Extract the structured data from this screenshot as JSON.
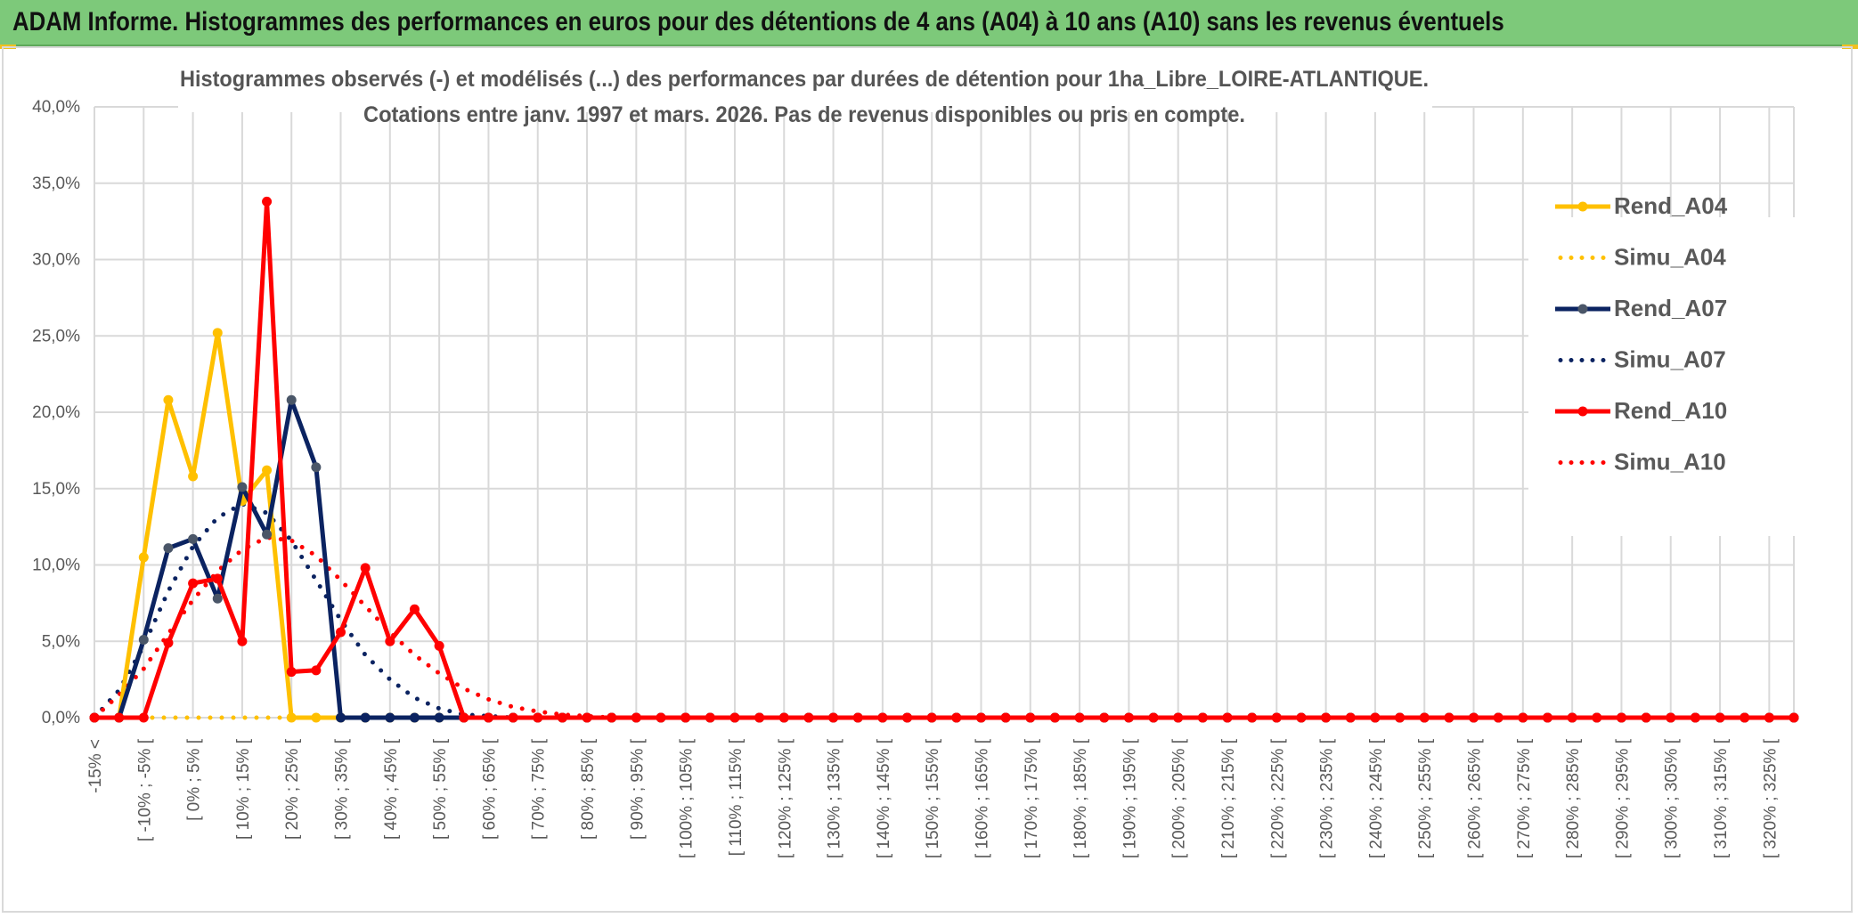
{
  "banner": {
    "title": "ADAM Informe. Histogrammes des performances en euros pour des détentions de 4 ans (A04) à 10 ans (A10) sans les revenus éventuels"
  },
  "chart_data": {
    "type": "line",
    "title": "Histogrammes observés (-) et modélisés (...) des performances par durées de détention pour 1ha_Libre_LOIRE-ATLANTIQUE.",
    "subtitle": "Cotations entre janv. 1997 et mars. 2026. Pas de revenus disponibles ou pris en compte.",
    "xlabel": "",
    "ylabel": "",
    "ylim": [
      0,
      40
    ],
    "yticks": [
      "0,0%",
      "5,0%",
      "10,0%",
      "15,0%",
      "20,0%",
      "25,0%",
      "30,0%",
      "35,0%",
      "40,0%"
    ],
    "grid": true,
    "legend_position": "right",
    "x_tick_labels": [
      "-15% <",
      "[ -10% ; -5% [",
      "[ 0% ; 5% [",
      "[ 10% ; 15% [",
      "[ 20% ; 25% [",
      "[ 30% ; 35% [",
      "[ 40% ; 45% [",
      "[ 50% ; 55% [",
      "[ 60% ; 65% [",
      "[ 70% ; 75% [",
      "[ 80% ; 85% [",
      "[ 90% ; 95% [",
      "[ 100% ; 105% [",
      "[ 110% ; 115% [",
      "[ 120% ; 125% [",
      "[ 130% ; 135% [",
      "[ 140% ; 145% [",
      "[ 150% ; 155% [",
      "[ 160% ; 165% [",
      "[ 170% ; 175% [",
      "[ 180% ; 185% [",
      "[ 190% ; 195% [",
      "[ 200% ; 205% [",
      "[ 210% ; 215% [",
      "[ 220% ; 225% [",
      "[ 230% ; 235% [",
      "[ 240% ; 245% [",
      "[ 250% ; 255% [",
      "[ 260% ; 265% [",
      "[ 270% ; 275% [",
      "[ 280% ; 285% [",
      "[ 290% ; 295% [",
      "[ 300% ; 305% [",
      "[ 310% ; 315% [",
      "[ 320% ; 325% ["
    ],
    "series": [
      {
        "name": "Rend_A04",
        "style": "solid",
        "color": "#ffc000",
        "values": [
          0,
          0,
          10.5,
          20.8,
          15.8,
          25.2,
          14.2,
          16.2,
          0,
          0
        ]
      },
      {
        "name": "Simu_A04",
        "style": "dotted",
        "color": "#ffc000",
        "values": [
          0,
          0,
          0,
          0,
          0,
          0,
          0,
          0,
          0,
          0
        ]
      },
      {
        "name": "Rend_A07",
        "style": "solid",
        "color": "#0b2361",
        "values": [
          0,
          0,
          5.1,
          11.1,
          11.7,
          7.8,
          15.1,
          12.0,
          20.8,
          16.4,
          0,
          0,
          0,
          0,
          0,
          0
        ]
      },
      {
        "name": "Simu_A07",
        "style": "dotted",
        "color": "#0b2361",
        "values": [
          0,
          1.8,
          4.7,
          8.3,
          11.2,
          13.1,
          14.0,
          13.4,
          11.6,
          9.0,
          6.4,
          4.1,
          2.5,
          1.3,
          0.6,
          0.2,
          0.1,
          0
        ]
      },
      {
        "name": "Rend_A10",
        "style": "solid",
        "color": "#ff0000",
        "values": [
          0,
          0,
          0,
          4.9,
          8.8,
          9.1,
          5.0,
          33.8,
          3.0,
          3.1,
          5.6,
          9.8,
          5.0,
          7.1,
          4.7,
          0,
          0,
          0,
          0,
          0,
          0,
          0,
          0,
          0,
          0,
          0,
          0,
          0,
          0,
          0,
          0,
          0,
          0,
          0,
          0,
          0,
          0,
          0,
          0,
          0,
          0,
          0,
          0,
          0,
          0,
          0,
          0,
          0,
          0,
          0,
          0,
          0,
          0,
          0,
          0,
          0,
          0,
          0,
          0,
          0,
          0,
          0,
          0,
          0,
          0,
          0,
          0,
          0,
          0,
          0
        ]
      },
      {
        "name": "Simu_A10",
        "style": "dotted",
        "color": "#ff0000",
        "values": [
          0,
          1.5,
          3.2,
          5.5,
          7.7,
          9.6,
          11.0,
          11.8,
          11.6,
          10.6,
          9.0,
          7.3,
          5.6,
          4.1,
          2.9,
          1.9,
          1.2,
          0.7,
          0.4,
          0.2,
          0.1,
          0
        ]
      }
    ]
  }
}
